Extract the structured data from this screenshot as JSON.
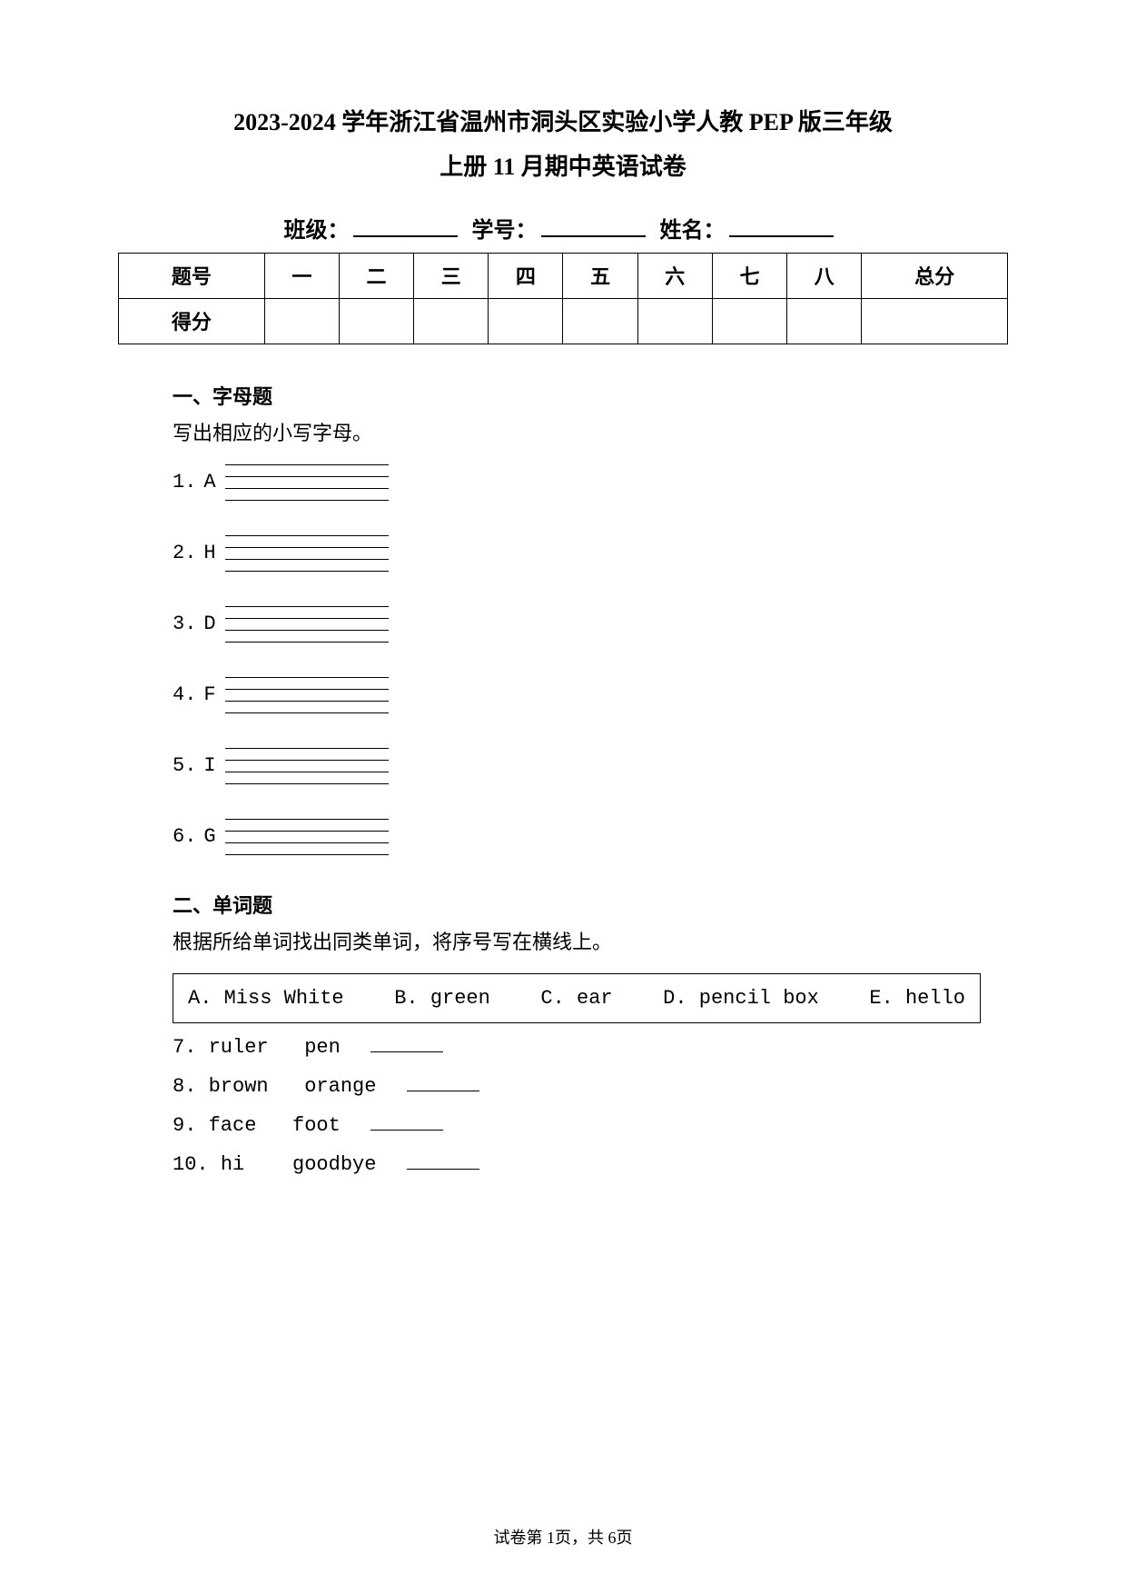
{
  "title_line1": "2023-2024 学年浙江省温州市洞头区实验小学人教 PEP 版三年级",
  "title_line2": "上册 11 月期中英语试卷",
  "class_label": "班级：",
  "student_id_label": "学号：",
  "name_label": "姓名：",
  "score_table": {
    "headers": [
      "题号",
      "一",
      "二",
      "三",
      "四",
      "五",
      "六",
      "七",
      "八",
      "总分"
    ],
    "row_label": "得分"
  },
  "section1": {
    "title": "一、字母题",
    "desc": "写出相应的小写字母。",
    "items": [
      {
        "num": "1.",
        "letter": "A"
      },
      {
        "num": "2.",
        "letter": "H"
      },
      {
        "num": "3.",
        "letter": "D"
      },
      {
        "num": "4.",
        "letter": "F"
      },
      {
        "num": "5.",
        "letter": "I"
      },
      {
        "num": "6.",
        "letter": "G"
      }
    ]
  },
  "section2": {
    "title": "二、单词题",
    "desc": "根据所给单词找出同类单词，将序号写在横线上。",
    "options": [
      {
        "label": "A.",
        "text": "Miss White"
      },
      {
        "label": "B.",
        "text": "green"
      },
      {
        "label": "C.",
        "text": " ear"
      },
      {
        "label": "D.",
        "text": "pencil box"
      },
      {
        "label": "E.",
        "text": "hello"
      }
    ],
    "items": [
      {
        "num": "7.",
        "words": "ruler   pen"
      },
      {
        "num": "8.",
        "words": "brown   orange"
      },
      {
        "num": "9.",
        "words": "face   foot"
      },
      {
        "num": "10.",
        "words": "hi    goodbye"
      }
    ]
  },
  "footer": "试卷第 1页，共 6页"
}
